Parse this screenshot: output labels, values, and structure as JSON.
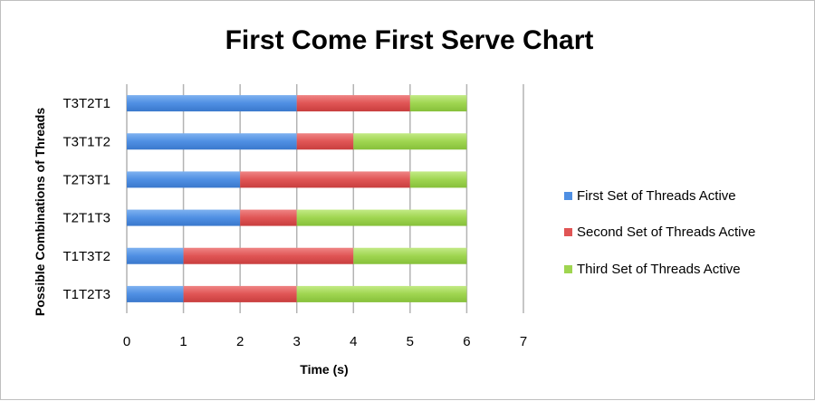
{
  "chart_data": {
    "type": "bar",
    "orientation": "horizontal",
    "stacked": true,
    "title": "First Come First Serve Chart",
    "xlabel": "Time (s)",
    "ylabel": "Possible Combinations of Threads",
    "xlim": [
      0,
      7
    ],
    "xticks": [
      "0",
      "1",
      "2",
      "3",
      "4",
      "5",
      "6",
      "7"
    ],
    "grid": true,
    "legend_position": "right",
    "categories": [
      "T1T2T3",
      "T1T3T2",
      "T2T1T3",
      "T2T3T1",
      "T3T1T2",
      "T3T2T1"
    ],
    "series": [
      {
        "name": "First Set of Threads Active",
        "color": "#4f8fe3",
        "values": [
          1,
          1,
          2,
          2,
          3,
          3
        ]
      },
      {
        "name": "Second Set of Threads Active",
        "color": "#e05555",
        "values": [
          2,
          3,
          1,
          3,
          1,
          2
        ]
      },
      {
        "name": "Third Set of Threads Active",
        "color": "#9fd550",
        "values": [
          3,
          2,
          3,
          1,
          2,
          1
        ]
      }
    ]
  }
}
